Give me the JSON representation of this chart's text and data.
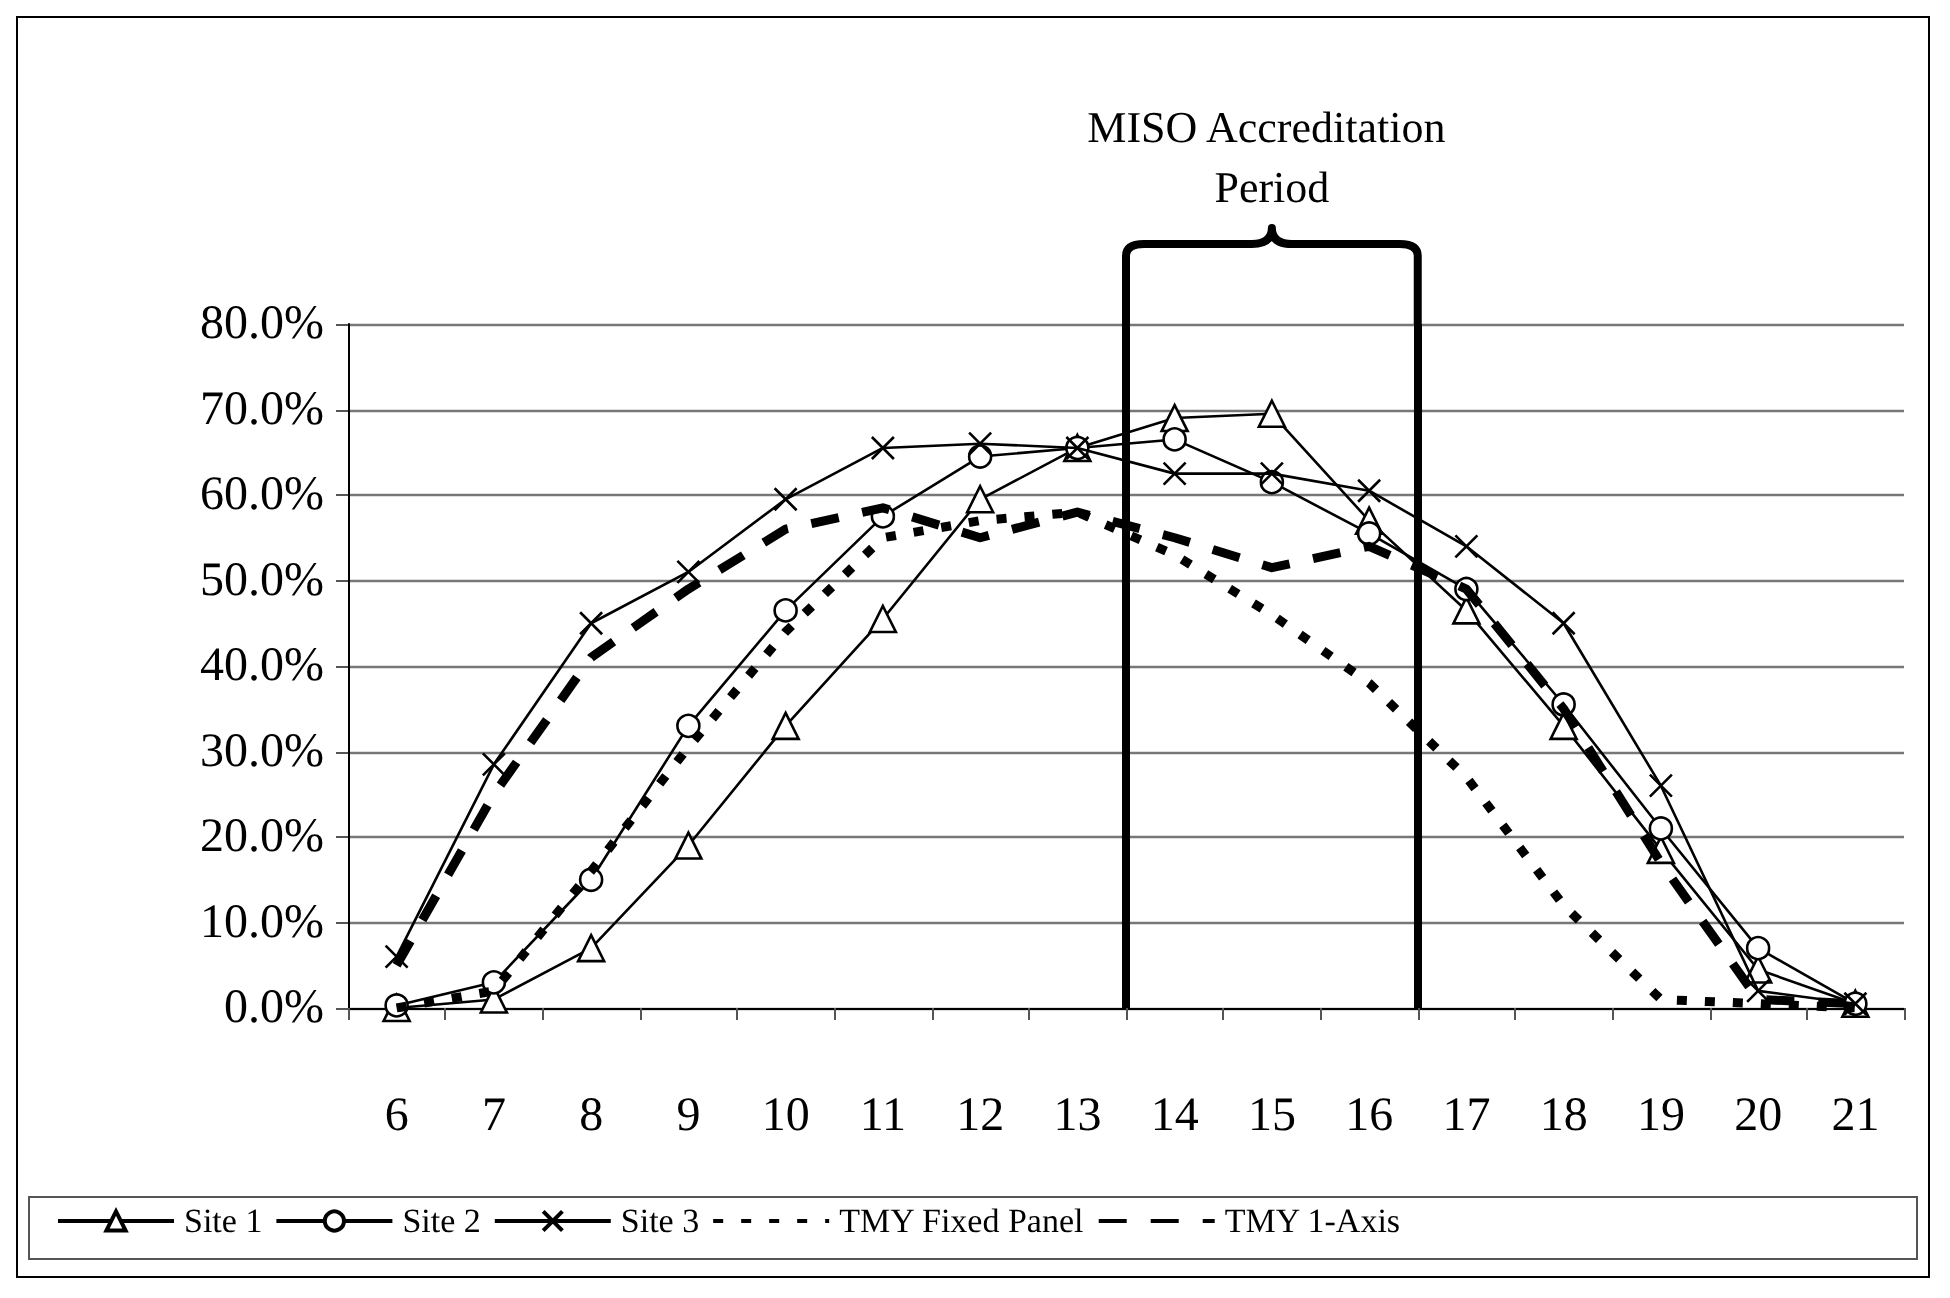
{
  "chart_data": {
    "type": "line",
    "x": [
      6,
      7,
      8,
      9,
      10,
      11,
      12,
      13,
      14,
      15,
      16,
      17,
      18,
      19,
      20,
      21
    ],
    "xlim": [
      5.5,
      21.5
    ],
    "xticks": [
      {
        "value": 5.5,
        "label": null
      },
      6,
      {
        "value": 6.5,
        "label": null
      },
      7,
      {
        "value": 7.5,
        "label": null
      },
      8,
      {
        "value": 8.5,
        "label": null
      },
      9,
      {
        "value": 9.5,
        "label": null
      },
      10,
      {
        "value": 10.5,
        "label": null
      },
      11,
      {
        "value": 11.5,
        "label": null
      },
      12,
      {
        "value": 12.5,
        "label": null
      },
      13,
      {
        "value": 13.5,
        "label": null
      },
      14,
      {
        "value": 14.5,
        "label": null
      },
      15,
      {
        "value": 15.5,
        "label": null
      },
      16,
      {
        "value": 16.5,
        "label": null
      },
      17,
      {
        "value": 17.5,
        "label": null
      },
      18,
      {
        "value": 18.5,
        "label": null
      },
      19,
      {
        "value": 19.5,
        "label": null
      },
      20,
      {
        "value": 20.5,
        "label": null
      },
      21,
      {
        "value": 21.5,
        "label": null
      }
    ],
    "ylim": [
      0,
      80
    ],
    "yticks": [
      {
        "value": 0,
        "label": "0.0%"
      },
      {
        "value": 10,
        "label": "10.0%"
      },
      {
        "value": 20,
        "label": "20.0%"
      },
      {
        "value": 30,
        "label": "30.0%"
      },
      {
        "value": 40,
        "label": "40.0%"
      },
      {
        "value": 50,
        "label": "50.0%"
      },
      {
        "value": 60,
        "label": "60.0%"
      },
      {
        "value": 70,
        "label": "70.0%"
      },
      {
        "value": 80,
        "label": "80.0%"
      }
    ],
    "grid": "y",
    "legend": "bottom",
    "series": [
      {
        "name": "Site 1",
        "color": "#000000",
        "marker": "triangle",
        "line_style": "solid",
        "values": [
          0,
          1,
          7,
          19,
          33,
          45.5,
          59.5,
          65.5,
          69,
          69.5,
          57,
          46.5,
          33,
          18.5,
          4.5,
          0.5
        ]
      },
      {
        "name": "Site 2",
        "color": "#000000",
        "marker": "circle",
        "line_style": "solid",
        "values": [
          0.3,
          3,
          15,
          33,
          46.5,
          57.5,
          64.5,
          65.5,
          66.5,
          61.5,
          55.5,
          49,
          35.5,
          21,
          7,
          0.5
        ]
      },
      {
        "name": "Site 3",
        "color": "#000000",
        "marker": "cross",
        "line_style": "solid",
        "values": [
          6,
          28.5,
          45,
          51,
          59.5,
          65.5,
          66,
          65.5,
          62.5,
          62.5,
          60.5,
          54,
          45,
          26,
          2,
          0.5
        ]
      },
      {
        "name": "TMY Fixed Panel",
        "color": "#000000",
        "marker": "none",
        "line_style": "dotted",
        "values": [
          0,
          2,
          16,
          30.5,
          44,
          55,
          57,
          58,
          53,
          46,
          38,
          27,
          12,
          1,
          0.5,
          0
        ]
      },
      {
        "name": "TMY 1-Axis",
        "color": "#000000",
        "marker": "none",
        "line_style": "dashed",
        "values": [
          5,
          25,
          41,
          49,
          56,
          58.5,
          55,
          58,
          55,
          51.5,
          54,
          49,
          35,
          17,
          1,
          0.5
        ]
      }
    ],
    "ref_lines": [
      {
        "axis": "x",
        "value": 13.5,
        "color": "#000000"
      },
      {
        "axis": "x",
        "value": 16.5,
        "color": "#000000"
      }
    ],
    "annotations": [
      "MISO Accreditation Period"
    ]
  }
}
